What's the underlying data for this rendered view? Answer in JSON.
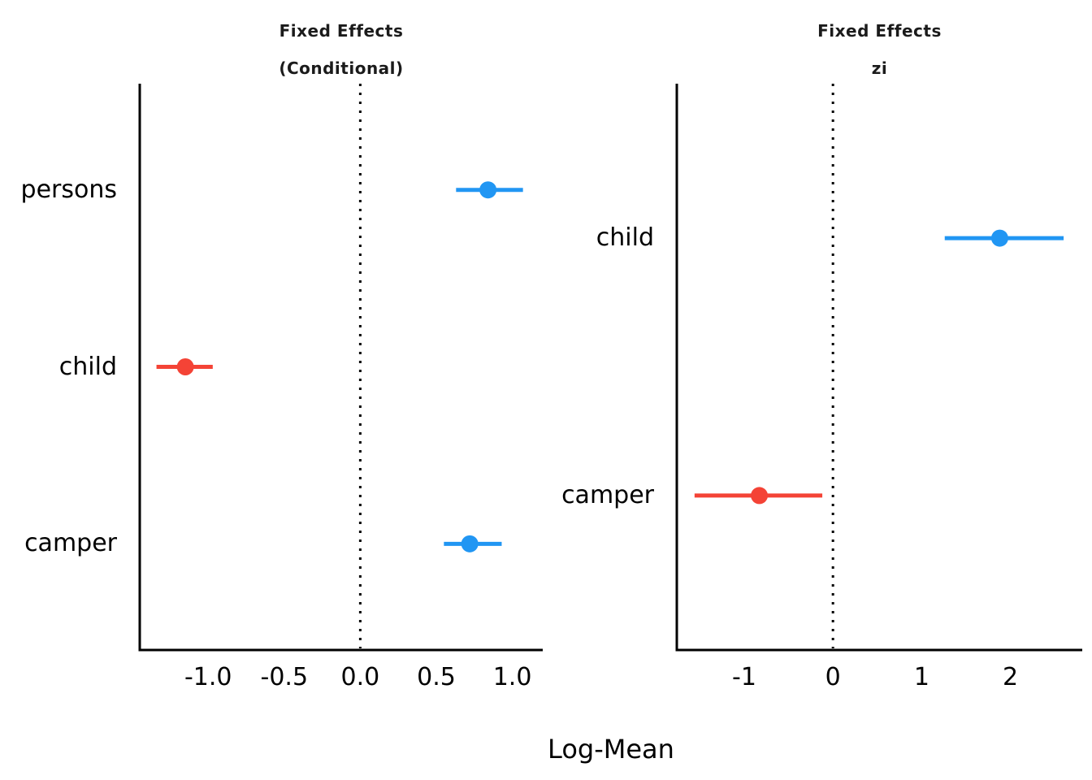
{
  "figure": {
    "xlabel": "Log-Mean",
    "background_color": "#ffffff",
    "axis_color": "#000000",
    "text_color": "#000000",
    "title_color": "#1b1b1b",
    "positive_color": "#2196F3",
    "negative_color": "#F44336"
  },
  "chart_data": [
    {
      "type": "forest",
      "panel_id": "conditional",
      "title": "Fixed Effects",
      "subtitle": "(Conditional)",
      "categories": [
        "persons",
        "child",
        "camper"
      ],
      "series": [
        {
          "name": "persons",
          "estimate": 0.84,
          "ci_low": 0.63,
          "ci_high": 1.07,
          "direction": "positive"
        },
        {
          "name": "child",
          "estimate": -1.15,
          "ci_low": -1.34,
          "ci_high": -0.97,
          "direction": "negative"
        },
        {
          "name": "camper",
          "estimate": 0.72,
          "ci_low": 0.55,
          "ci_high": 0.93,
          "direction": "positive"
        }
      ],
      "xlim": [
        -1.45,
        1.2
      ],
      "ticks": [
        -1.0,
        -0.5,
        0.0,
        0.5,
        1.0
      ],
      "tick_labels": [
        "-1.0",
        "-0.5",
        "0.0",
        "0.5",
        "1.0"
      ],
      "reference_line": 0,
      "grid": false,
      "legend": "none"
    },
    {
      "type": "forest",
      "panel_id": "zi",
      "title": "Fixed Effects",
      "subtitle": "zi",
      "categories": [
        "child",
        "camper"
      ],
      "series": [
        {
          "name": "child",
          "estimate": 1.88,
          "ci_low": 1.26,
          "ci_high": 2.6,
          "direction": "positive"
        },
        {
          "name": "camper",
          "estimate": -0.83,
          "ci_low": -1.56,
          "ci_high": -0.12,
          "direction": "negative"
        }
      ],
      "xlim": [
        -1.76,
        2.81
      ],
      "ticks": [
        -1,
        0,
        1,
        2
      ],
      "tick_labels": [
        "-1",
        "0",
        "1",
        "2"
      ],
      "reference_line": 0,
      "grid": false,
      "legend": "none"
    }
  ]
}
